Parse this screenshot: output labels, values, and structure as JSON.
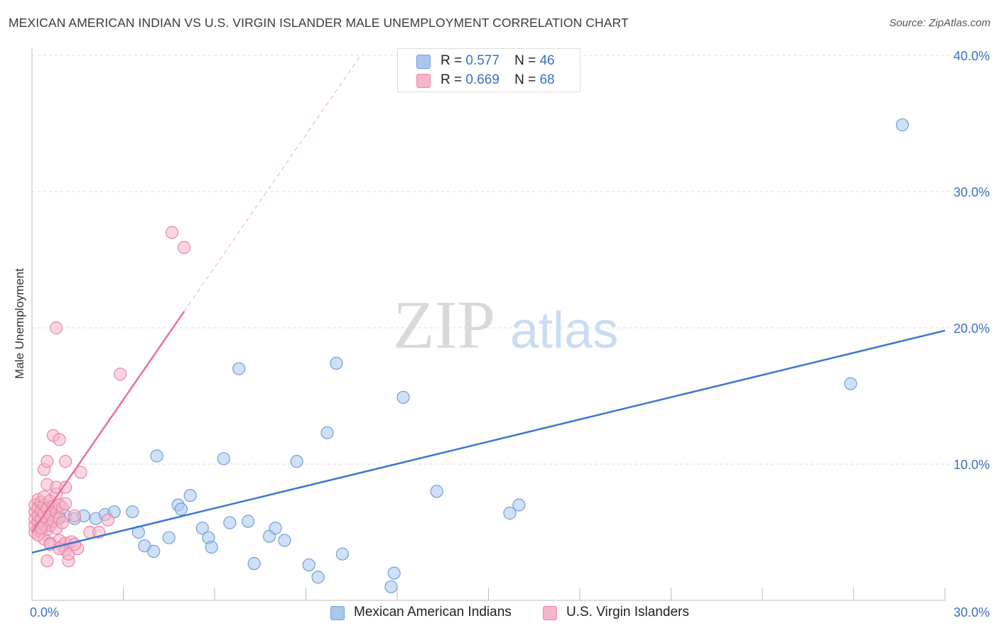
{
  "title": "MEXICAN AMERICAN INDIAN VS U.S. VIRGIN ISLANDER MALE UNEMPLOYMENT CORRELATION CHART",
  "source": "Source: ZipAtlas.com",
  "watermark": {
    "zip": "ZIP",
    "atlas": "atlas"
  },
  "legend": {
    "series1": {
      "r_label": "R =",
      "r_value": "0.577",
      "n_label": "N =",
      "n_value": "46"
    },
    "series2": {
      "r_label": "R =",
      "r_value": "0.669",
      "n_label": "N =",
      "n_value": "68"
    }
  },
  "bottom_legend": {
    "series1": "Mexican American Indians",
    "series2": "U.S. Virgin Islanders"
  },
  "colors": {
    "blue_fill": "#a9c7ef",
    "blue_stroke": "#6f9fdd",
    "blue_line": "#3a78d0",
    "pink_fill": "#f6b5c8",
    "pink_stroke": "#ec86a6",
    "pink_line": "#e8719a",
    "axis_text": "#3a6fc4",
    "grid": "#dcdcdc"
  },
  "chart_data": {
    "type": "scatter",
    "title": "MEXICAN AMERICAN INDIAN VS U.S. VIRGIN ISLANDER MALE UNEMPLOYMENT CORRELATION CHART",
    "xlabel": "",
    "ylabel": "Male Unemployment",
    "xlim": [
      0,
      30
    ],
    "ylim": [
      0,
      40
    ],
    "x_tick_labels": [
      "0.0%",
      "30.0%"
    ],
    "y_ticks": [
      10,
      20,
      30,
      40
    ],
    "y_tick_labels": [
      "10.0%",
      "20.0%",
      "30.0%",
      "40.0%"
    ],
    "series": [
      {
        "name": "Mexican American Indians",
        "color": "blue",
        "r": 0.577,
        "n": 46,
        "trend": {
          "x": [
            0,
            30
          ],
          "y": [
            3.5,
            19.8
          ],
          "solid_to": 30
        },
        "points": [
          [
            0.3,
            5.5
          ],
          [
            0.4,
            6.0
          ],
          [
            0.6,
            6.5
          ],
          [
            0.8,
            6.0
          ],
          [
            1.1,
            6.2
          ],
          [
            1.4,
            6.0
          ],
          [
            1.7,
            6.2
          ],
          [
            2.1,
            6.0
          ],
          [
            2.4,
            6.3
          ],
          [
            2.7,
            6.5
          ],
          [
            3.3,
            6.5
          ],
          [
            3.5,
            5.0
          ],
          [
            3.7,
            4.0
          ],
          [
            4.0,
            3.6
          ],
          [
            4.1,
            10.6
          ],
          [
            4.5,
            4.6
          ],
          [
            4.8,
            7.0
          ],
          [
            4.9,
            6.7
          ],
          [
            5.2,
            7.7
          ],
          [
            5.6,
            5.3
          ],
          [
            5.8,
            4.6
          ],
          [
            5.9,
            3.9
          ],
          [
            6.3,
            10.4
          ],
          [
            6.5,
            5.7
          ],
          [
            6.8,
            17.0
          ],
          [
            7.1,
            5.8
          ],
          [
            7.3,
            2.7
          ],
          [
            7.8,
            4.7
          ],
          [
            8.0,
            5.3
          ],
          [
            8.3,
            4.4
          ],
          [
            8.7,
            10.2
          ],
          [
            9.1,
            2.6
          ],
          [
            9.4,
            1.7
          ],
          [
            9.7,
            12.3
          ],
          [
            10.0,
            17.4
          ],
          [
            10.2,
            3.4
          ],
          [
            11.8,
            1.0
          ],
          [
            11.9,
            2.0
          ],
          [
            12.2,
            14.9
          ],
          [
            13.3,
            8.0
          ],
          [
            15.7,
            6.4
          ],
          [
            16.0,
            7.0
          ],
          [
            26.9,
            15.9
          ],
          [
            28.6,
            34.9
          ],
          [
            0.5,
            5.6
          ],
          [
            0.9,
            6.1
          ]
        ]
      },
      {
        "name": "U.S. Virgin Islanders",
        "color": "pink",
        "r": 0.669,
        "n": 68,
        "trend": {
          "x": [
            0,
            10.8
          ],
          "y": [
            5.0,
            40.0
          ],
          "solid_to": 5.0
        },
        "points": [
          [
            0.1,
            5.0
          ],
          [
            0.1,
            5.5
          ],
          [
            0.1,
            6.0
          ],
          [
            0.1,
            6.5
          ],
          [
            0.1,
            7.0
          ],
          [
            0.2,
            5.2
          ],
          [
            0.2,
            5.8
          ],
          [
            0.2,
            6.2
          ],
          [
            0.2,
            6.8
          ],
          [
            0.2,
            7.4
          ],
          [
            0.3,
            5.0
          ],
          [
            0.3,
            5.4
          ],
          [
            0.3,
            6.0
          ],
          [
            0.3,
            6.6
          ],
          [
            0.3,
            7.2
          ],
          [
            0.4,
            4.5
          ],
          [
            0.4,
            5.6
          ],
          [
            0.4,
            6.4
          ],
          [
            0.4,
            7.0
          ],
          [
            0.4,
            7.6
          ],
          [
            0.5,
            5.2
          ],
          [
            0.5,
            5.9
          ],
          [
            0.5,
            6.7
          ],
          [
            0.5,
            8.5
          ],
          [
            0.4,
            9.6
          ],
          [
            0.5,
            10.2
          ],
          [
            0.6,
            5.5
          ],
          [
            0.6,
            6.3
          ],
          [
            0.6,
            7.3
          ],
          [
            0.6,
            4.2
          ],
          [
            0.7,
            5.8
          ],
          [
            0.7,
            6.9
          ],
          [
            0.7,
            12.1
          ],
          [
            0.8,
            5.3
          ],
          [
            0.8,
            6.5
          ],
          [
            0.8,
            7.8
          ],
          [
            0.8,
            8.3
          ],
          [
            0.9,
            6.0
          ],
          [
            0.9,
            4.4
          ],
          [
            0.9,
            7.0
          ],
          [
            0.9,
            11.8
          ],
          [
            1.0,
            5.7
          ],
          [
            1.0,
            6.8
          ],
          [
            1.0,
            4.0
          ],
          [
            1.1,
            4.2
          ],
          [
            1.1,
            7.1
          ],
          [
            1.1,
            3.7
          ],
          [
            1.1,
            8.3
          ],
          [
            1.1,
            10.2
          ],
          [
            1.2,
            2.9
          ],
          [
            1.2,
            3.4
          ],
          [
            1.3,
            4.3
          ],
          [
            1.4,
            6.2
          ],
          [
            1.5,
            3.8
          ],
          [
            1.6,
            9.4
          ],
          [
            1.9,
            5.0
          ],
          [
            2.2,
            5.0
          ],
          [
            2.5,
            5.9
          ],
          [
            2.9,
            16.6
          ],
          [
            4.6,
            27.0
          ],
          [
            5.0,
            25.9
          ],
          [
            1.4,
            4.1
          ],
          [
            0.8,
            20.0
          ],
          [
            0.5,
            2.9
          ],
          [
            0.2,
            4.8
          ],
          [
            0.3,
            5.3
          ],
          [
            0.6,
            4.1
          ],
          [
            0.9,
            3.8
          ]
        ]
      }
    ]
  }
}
